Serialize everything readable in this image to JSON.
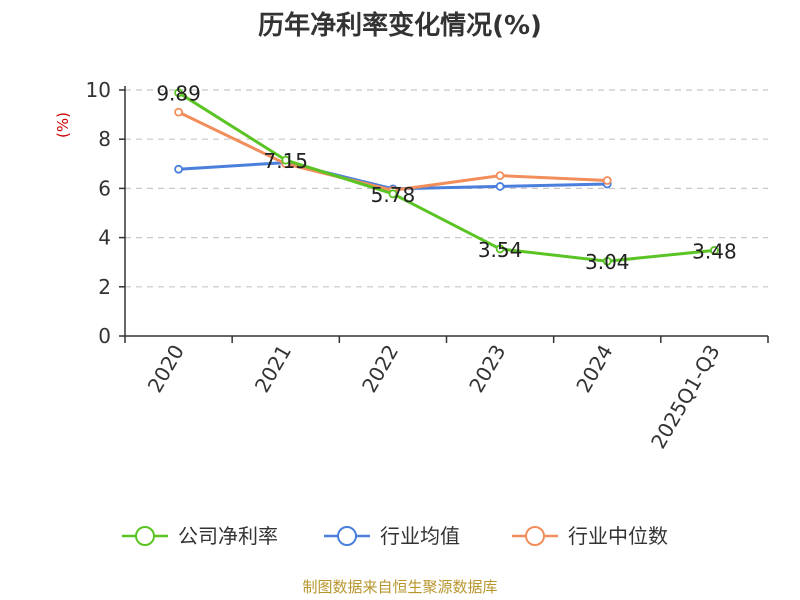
{
  "chart_data": {
    "type": "line",
    "title": "历年净利率变化情况(%)",
    "ylabel": "(%)",
    "xlabel": "",
    "categories": [
      "2020",
      "2021",
      "2022",
      "2023",
      "2024",
      "2025Q1-Q3"
    ],
    "ylim": [
      0,
      10
    ],
    "yticks": [
      0,
      2,
      4,
      6,
      8,
      10
    ],
    "grid": true,
    "legend_position": "bottom",
    "series": [
      {
        "name": "公司净利率",
        "color": "#5bc425",
        "values": [
          9.89,
          7.15,
          5.78,
          3.54,
          3.04,
          3.48
        ],
        "labels": [
          "9.89",
          "7.15",
          "5.78",
          "3.54",
          "3.04",
          "3.48"
        ],
        "show_labels": true
      },
      {
        "name": "行业均值",
        "color": "#4a7fdb",
        "values": [
          6.78,
          7.05,
          5.98,
          6.08,
          6.18,
          null
        ],
        "show_labels": false
      },
      {
        "name": "行业中位数",
        "color": "#f28e5b",
        "values": [
          9.1,
          7.0,
          5.92,
          6.52,
          6.32,
          null
        ],
        "show_labels": false
      }
    ],
    "unit_color": "#cc0000",
    "axis_color": "#333333",
    "grid_color": "#c8c8c8"
  },
  "footer": {
    "source": "制图数据来自恒生聚源数据库",
    "source_color": "#b8962e"
  }
}
